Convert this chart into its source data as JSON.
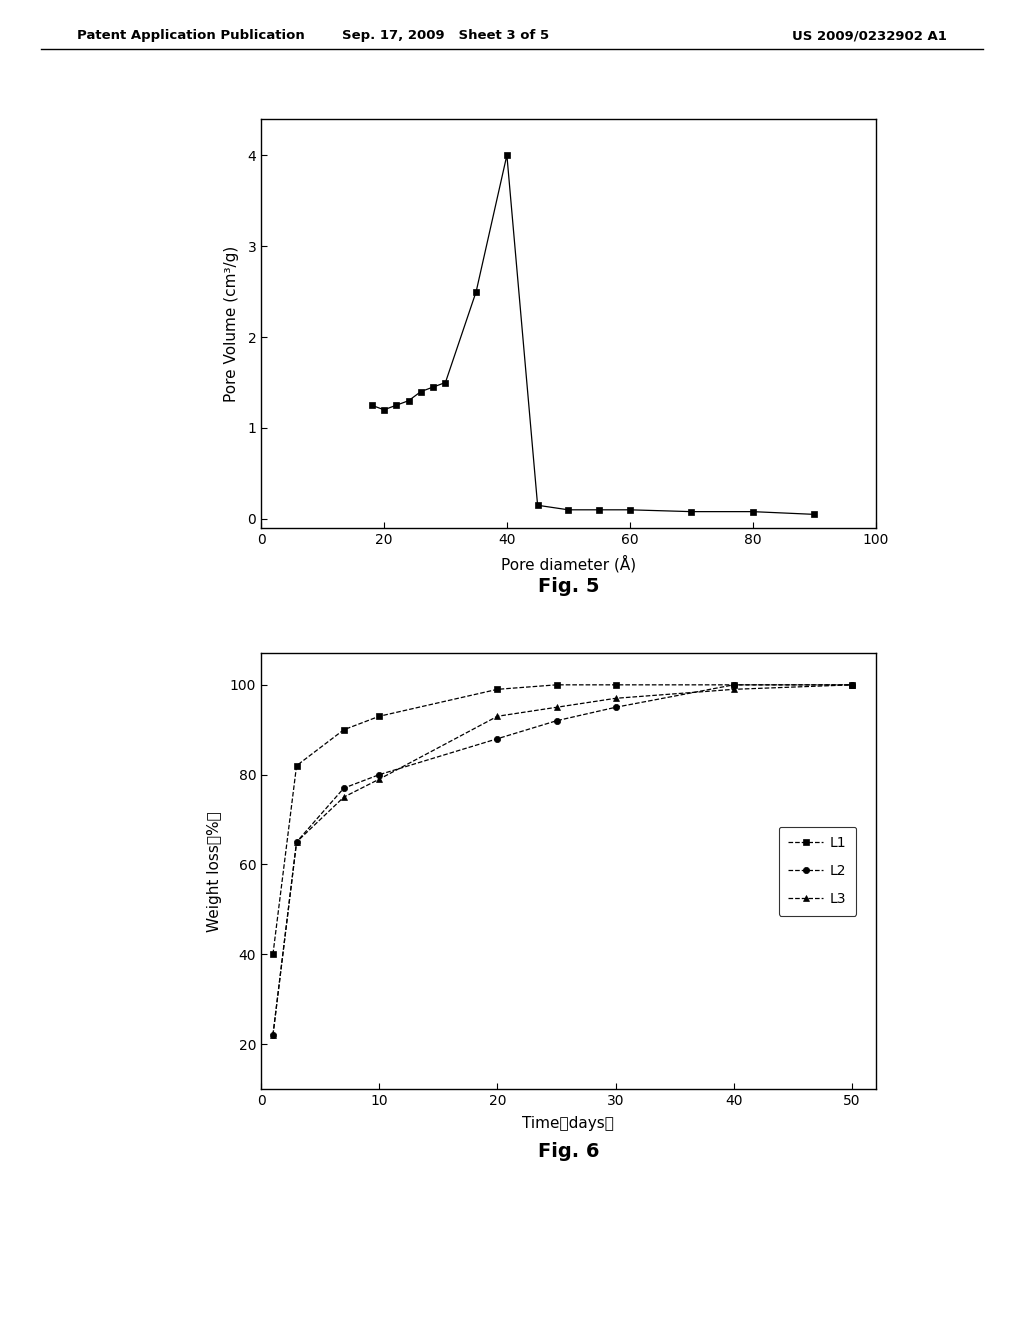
{
  "fig5": {
    "x": [
      18,
      20,
      22,
      24,
      26,
      28,
      30,
      35,
      40,
      45,
      50,
      55,
      60,
      70,
      80,
      90
    ],
    "y": [
      1.25,
      1.2,
      1.25,
      1.3,
      1.4,
      1.45,
      1.5,
      2.5,
      4.0,
      0.15,
      0.1,
      0.1,
      0.1,
      0.08,
      0.08,
      0.05
    ],
    "xlabel": "Pore diameter (Å)",
    "ylabel": "Pore Volume (cm³/g)",
    "xlim": [
      0,
      100
    ],
    "ylim": [
      -0.1,
      4.4
    ],
    "xticks": [
      0,
      20,
      40,
      60,
      80,
      100
    ],
    "yticks": [
      0,
      1,
      2,
      3,
      4
    ],
    "figcaption": "Fig. 5"
  },
  "fig6": {
    "L1_x": [
      1,
      3,
      7,
      10,
      20,
      25,
      30,
      40,
      50
    ],
    "L1_y": [
      40,
      82,
      90,
      93,
      99,
      100,
      100,
      100,
      100
    ],
    "L2_x": [
      1,
      3,
      7,
      10,
      20,
      25,
      30,
      40,
      50
    ],
    "L2_y": [
      22,
      65,
      77,
      80,
      88,
      92,
      95,
      100,
      100
    ],
    "L3_x": [
      1,
      3,
      7,
      10,
      20,
      25,
      30,
      40,
      50
    ],
    "L3_y": [
      22,
      65,
      75,
      79,
      93,
      95,
      97,
      99,
      100
    ],
    "xlabel": "Time（days）",
    "ylabel": "Weight loss（%）",
    "xlim": [
      0,
      52
    ],
    "ylim": [
      10,
      107
    ],
    "xticks": [
      0,
      10,
      20,
      30,
      40,
      50
    ],
    "yticks": [
      20,
      40,
      60,
      80,
      100
    ],
    "figcaption": "Fig. 6",
    "legend_labels": [
      "L1",
      "L2",
      "L3"
    ]
  },
  "header_left": "Patent Application Publication",
  "header_mid": "Sep. 17, 2009   Sheet 3 of 5",
  "header_right": "US 2009/0232902 A1",
  "bg_color": "#ffffff"
}
